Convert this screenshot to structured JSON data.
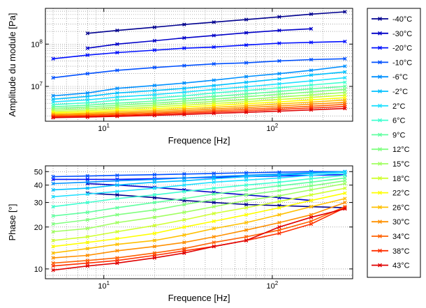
{
  "chart_data": [
    {
      "type": "line",
      "xlabel": "Frequence [Hz]",
      "ylabel": "Amplitude du module [Pa]",
      "x_scale": "log",
      "y_scale": "log",
      "xlim": [
        4.5,
        300
      ],
      "ylim": [
        1500000,
        700000000
      ],
      "grid": true,
      "x_ticks": [
        {
          "value": 10,
          "label": "10^1"
        },
        {
          "value": 100,
          "label": "10^2"
        }
      ],
      "y_ticks": [
        {
          "value": 10000000,
          "label": "10^7"
        },
        {
          "value": 100000000,
          "label": "10^8"
        }
      ],
      "x": [
        5,
        8,
        12,
        20,
        30,
        45,
        70,
        110,
        170,
        270
      ],
      "series": [
        {
          "name": "-40°C",
          "x": [
            8,
            12,
            20,
            30,
            45,
            70,
            110,
            170,
            270
          ],
          "values": [
            180000000,
            210000000,
            250000000,
            290000000,
            330000000,
            380000000,
            440000000,
            510000000,
            580000000
          ]
        },
        {
          "name": "-30°C",
          "x": [
            8,
            12,
            20,
            30,
            45,
            70,
            110,
            170
          ],
          "values": [
            80000000,
            100000000,
            120000000,
            140000000,
            160000000,
            185000000,
            210000000,
            230000000
          ]
        },
        {
          "name": "-20°C",
          "values": [
            45000000,
            55000000,
            63000000,
            72000000,
            80000000,
            85000000,
            95000000,
            105000000,
            110000000,
            115000000
          ]
        },
        {
          "name": "-10°C",
          "values": [
            16000000,
            20000000,
            24000000,
            28000000,
            31000000,
            34000000,
            36000000,
            40000000,
            43000000,
            45000000
          ]
        },
        {
          "name": "-6°C",
          "values": [
            6000000,
            7000000,
            9000000,
            10500000,
            12000000,
            14000000,
            17000000,
            20000000,
            24000000,
            30000000
          ]
        },
        {
          "name": "-2°C",
          "values": [
            5000000,
            5800000,
            7000000,
            8000000,
            9000000,
            10500000,
            12500000,
            15000000,
            18500000,
            22000000
          ]
        },
        {
          "name": "2°C",
          "values": [
            4300000,
            4800000,
            5600000,
            6400000,
            7300000,
            8500000,
            9800000,
            11500000,
            13500000,
            16000000
          ]
        },
        {
          "name": "6°C",
          "values": [
            3700000,
            4100000,
            4700000,
            5300000,
            6000000,
            7000000,
            8000000,
            9300000,
            10800000,
            12500000
          ]
        },
        {
          "name": "9°C",
          "values": [
            3300000,
            3600000,
            4000000,
            4500000,
            5100000,
            5800000,
            6600000,
            7600000,
            8800000,
            10000000
          ]
        },
        {
          "name": "12°C",
          "values": [
            3000000,
            3250000,
            3600000,
            4000000,
            4500000,
            5000000,
            5700000,
            6500000,
            7400000,
            8500000
          ]
        },
        {
          "name": "15°C",
          "values": [
            2750000,
            2950000,
            3250000,
            3600000,
            4000000,
            4400000,
            4900000,
            5600000,
            6300000,
            7200000
          ]
        },
        {
          "name": "18°C",
          "values": [
            2550000,
            2700000,
            2950000,
            3250000,
            3600000,
            3950000,
            4350000,
            4900000,
            5500000,
            6200000
          ]
        },
        {
          "name": "22°C",
          "values": [
            2380000,
            2500000,
            2700000,
            2950000,
            3250000,
            3550000,
            3900000,
            4300000,
            4800000,
            5400000
          ]
        },
        {
          "name": "26°C",
          "values": [
            2230000,
            2330000,
            2500000,
            2700000,
            2950000,
            3200000,
            3500000,
            3850000,
            4250000,
            4750000
          ]
        },
        {
          "name": "30°C",
          "values": [
            2110000,
            2190000,
            2330000,
            2500000,
            2700000,
            2920000,
            3170000,
            3460000,
            3800000,
            4200000
          ]
        },
        {
          "name": "34°C",
          "values": [
            2000000,
            2070000,
            2190000,
            2330000,
            2500000,
            2680000,
            2880000,
            3120000,
            3400000,
            3750000
          ]
        },
        {
          "name": "38°C",
          "values": [
            1910000,
            1970000,
            2070000,
            2190000,
            2330000,
            2480000,
            2650000,
            2850000,
            3080000,
            3350000
          ]
        },
        {
          "name": "43°C",
          "values": [
            1830000,
            1880000,
            1960000,
            2060000,
            2170000,
            2300000,
            2440000,
            2600000,
            2780000,
            3000000
          ]
        }
      ]
    },
    {
      "type": "line",
      "xlabel": "Frequence [Hz]",
      "ylabel": "Phase [°]",
      "x_scale": "log",
      "y_scale": "log",
      "xlim": [
        4.5,
        300
      ],
      "ylim": [
        8.5,
        55
      ],
      "grid": true,
      "x_ticks": [
        {
          "value": 10,
          "label": "10^1"
        },
        {
          "value": 100,
          "label": "10^2"
        }
      ],
      "y_ticks": [
        {
          "value": 10,
          "label": "10"
        },
        {
          "value": 20,
          "label": "20"
        },
        {
          "value": 30,
          "label": "30"
        },
        {
          "value": 40,
          "label": "40"
        },
        {
          "value": 50,
          "label": "50"
        }
      ],
      "x": [
        5,
        8,
        12,
        20,
        30,
        45,
        70,
        110,
        170,
        270
      ],
      "series": [
        {
          "name": "-40°C",
          "x": [
            8,
            12,
            20,
            30,
            45,
            70,
            110,
            170,
            270
          ],
          "values": [
            35,
            34,
            32.5,
            31,
            30,
            29,
            28.5,
            28,
            27.5
          ]
        },
        {
          "name": "-30°C",
          "x": [
            8,
            12,
            20,
            30,
            45,
            70,
            110,
            170
          ],
          "values": [
            41,
            40,
            38.5,
            37,
            35.5,
            34,
            32.5,
            31
          ]
        },
        {
          "name": "-20°C",
          "values": [
            44,
            44,
            44,
            44.5,
            45,
            45.5,
            46,
            46.5,
            47,
            47.5
          ]
        },
        {
          "name": "-10°C",
          "values": [
            46,
            46.5,
            47,
            47.5,
            48,
            48.5,
            49,
            49.5,
            50,
            50
          ]
        },
        {
          "name": "-6°C",
          "values": [
            41,
            42,
            43,
            44,
            45,
            46,
            47,
            48,
            49,
            50
          ]
        },
        {
          "name": "-2°C",
          "values": [
            37,
            38,
            40,
            42,
            43,
            44.5,
            46,
            47,
            48.5,
            50
          ]
        },
        {
          "name": "2°C",
          "values": [
            33,
            34.5,
            36,
            38,
            40,
            42,
            43.5,
            45,
            47,
            49
          ]
        },
        {
          "name": "6°C",
          "values": [
            28,
            30,
            32,
            34,
            36,
            38,
            40,
            42,
            44.5,
            47
          ]
        },
        {
          "name": "9°C",
          "values": [
            24,
            25.5,
            27.5,
            30,
            32,
            34.5,
            37,
            39.5,
            42,
            45
          ]
        },
        {
          "name": "12°C",
          "values": [
            21,
            22.5,
            24.5,
            26.5,
            29,
            31.5,
            34,
            36.5,
            39.5,
            43
          ]
        },
        {
          "name": "15°C",
          "values": [
            18.5,
            19.5,
            21.5,
            23.5,
            25.5,
            28,
            31,
            33.5,
            37,
            41
          ]
        },
        {
          "name": "18°C",
          "values": [
            16,
            17,
            18.5,
            20.5,
            22.5,
            25,
            27.5,
            30.5,
            34,
            38
          ]
        },
        {
          "name": "22°C",
          "values": [
            14.5,
            15.5,
            16.5,
            18,
            20,
            22,
            24.5,
            27.5,
            31,
            35
          ]
        },
        {
          "name": "26°C",
          "values": [
            13,
            14,
            15,
            16,
            17.5,
            19.5,
            21.5,
            24.5,
            28,
            32
          ]
        },
        {
          "name": "30°C",
          "values": [
            12,
            12.5,
            13.5,
            14.5,
            15.5,
            17,
            19,
            21.5,
            24.5,
            30
          ]
        },
        {
          "name": "34°C",
          "values": [
            11,
            11.5,
            12,
            13,
            14,
            15.5,
            17,
            19,
            22,
            28
          ]
        },
        {
          "name": "38°C",
          "values": [
            10.5,
            11,
            11.5,
            12.5,
            13.5,
            14.5,
            16,
            18,
            21,
            27.5
          ]
        },
        {
          "name": "43°C",
          "values": [
            9.8,
            10.5,
            11,
            12,
            13,
            14.5,
            16,
            20,
            23.5,
            27
          ]
        }
      ]
    }
  ],
  "legend": {
    "entries": [
      "-40°C",
      "-30°C",
      "-20°C",
      "-10°C",
      "-6°C",
      "-2°C",
      "2°C",
      "6°C",
      "9°C",
      "12°C",
      "15°C",
      "18°C",
      "22°C",
      "26°C",
      "30°C",
      "34°C",
      "38°C",
      "43°C"
    ],
    "placement": "right"
  },
  "colors": [
    "#00008f",
    "#0000c8",
    "#0010ff",
    "#0050ff",
    "#0090ff",
    "#00c0ff",
    "#20e0ff",
    "#40ffd0",
    "#60ffa0",
    "#80ff80",
    "#a0ff60",
    "#d0ff30",
    "#ffff00",
    "#ffc000",
    "#ff9000",
    "#ff6000",
    "#ff3000",
    "#e00000"
  ]
}
